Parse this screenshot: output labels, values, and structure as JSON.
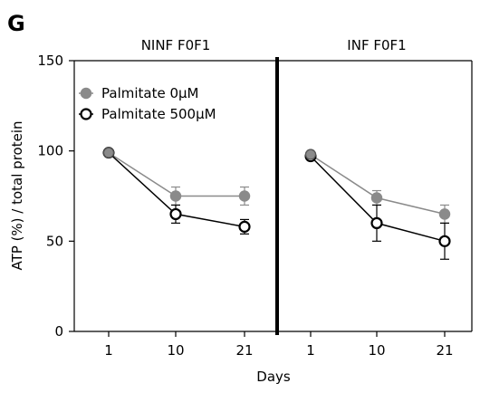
{
  "panel_label": "G",
  "chart_data": {
    "type": "line",
    "ylabel": "ATP (%) / total protein",
    "xlabel": "Days",
    "ylim": [
      0,
      150
    ],
    "yticks": [
      0,
      50,
      100,
      150
    ],
    "categories": [
      "1",
      "10",
      "21"
    ],
    "grid": false,
    "legend": "top-left",
    "colors": {
      "palmitate_0": "#8a8a8a",
      "palmitate_500": "#000000",
      "divider": "#000000"
    },
    "panels": [
      {
        "title": "NINF F0F1",
        "series": [
          {
            "name": "Palmitate 0μM",
            "values": [
              99,
              75,
              75
            ],
            "errors": [
              0,
              5,
              5
            ]
          },
          {
            "name": "Palmitate 500μM",
            "values": [
              99,
              65,
              58
            ],
            "errors": [
              0,
              5,
              4
            ]
          }
        ]
      },
      {
        "title": "INF F0F1",
        "series": [
          {
            "name": "Palmitate 0μM",
            "values": [
              98,
              74,
              65
            ],
            "errors": [
              0,
              4,
              5
            ]
          },
          {
            "name": "Palmitate 500μM",
            "values": [
              97,
              60,
              50
            ],
            "errors": [
              0,
              10,
              10
            ]
          }
        ]
      }
    ]
  }
}
